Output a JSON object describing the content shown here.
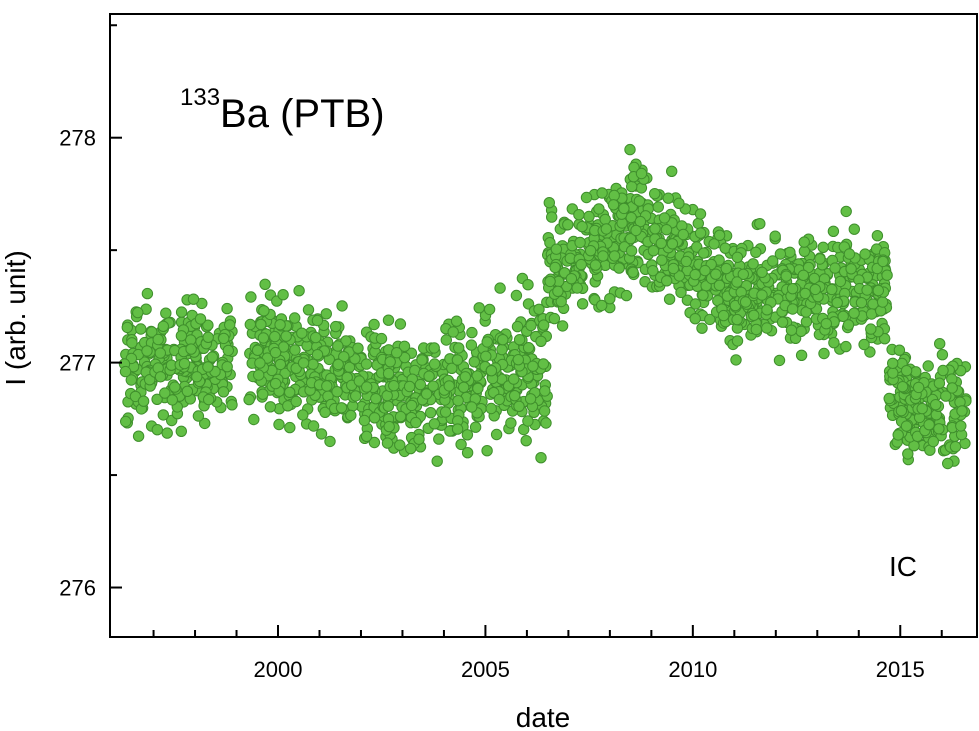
{
  "chart_data": {
    "type": "scatter",
    "title": "Ba (PTB)",
    "title_superscript": "133",
    "xlabel": "date",
    "ylabel": "I (arb. unit)",
    "annotation": "IC",
    "annotation_color": "#7b7d3a",
    "marker_fill": "#62bf45",
    "marker_stroke": "#3f8f2c",
    "xlim": [
      1995.95,
      2016.85
    ],
    "ylim": [
      275.78,
      278.55
    ],
    "x_major_ticks": [
      2000,
      2005,
      2010,
      2015
    ],
    "x_tick_labels": [
      "2000",
      "2005",
      "2010",
      "2015"
    ],
    "y_major_ticks": [
      276,
      277,
      278
    ],
    "y_tick_labels": [
      "276",
      "277",
      "278"
    ],
    "grid": false,
    "legend": "none",
    "segments": [
      {
        "x_start": 1996.3,
        "x_end": 1998.9,
        "y_start": 277.0,
        "y_end": 277.0,
        "spread": 0.22
      },
      {
        "x_start": 1999.3,
        "x_end": 2002.6,
        "y_start": 277.05,
        "y_end": 276.9,
        "spread": 0.22
      },
      {
        "x_start": 2002.6,
        "x_end": 2004.0,
        "y_start": 276.85,
        "y_end": 276.9,
        "spread": 0.25
      },
      {
        "x_start": 2004.0,
        "x_end": 2006.5,
        "y_start": 276.9,
        "y_end": 277.0,
        "spread": 0.25
      },
      {
        "x_start": 2006.5,
        "x_end": 2009.0,
        "y_start": 277.4,
        "y_end": 277.65,
        "spread": 0.22
      },
      {
        "x_start": 2009.0,
        "x_end": 2011.0,
        "y_start": 277.6,
        "y_end": 277.3,
        "spread": 0.22
      },
      {
        "x_start": 2011.0,
        "x_end": 2014.7,
        "y_start": 277.3,
        "y_end": 277.35,
        "spread": 0.22
      },
      {
        "x_start": 2014.7,
        "x_end": 2016.6,
        "y_start": 276.85,
        "y_end": 276.8,
        "spread": 0.2
      }
    ]
  }
}
